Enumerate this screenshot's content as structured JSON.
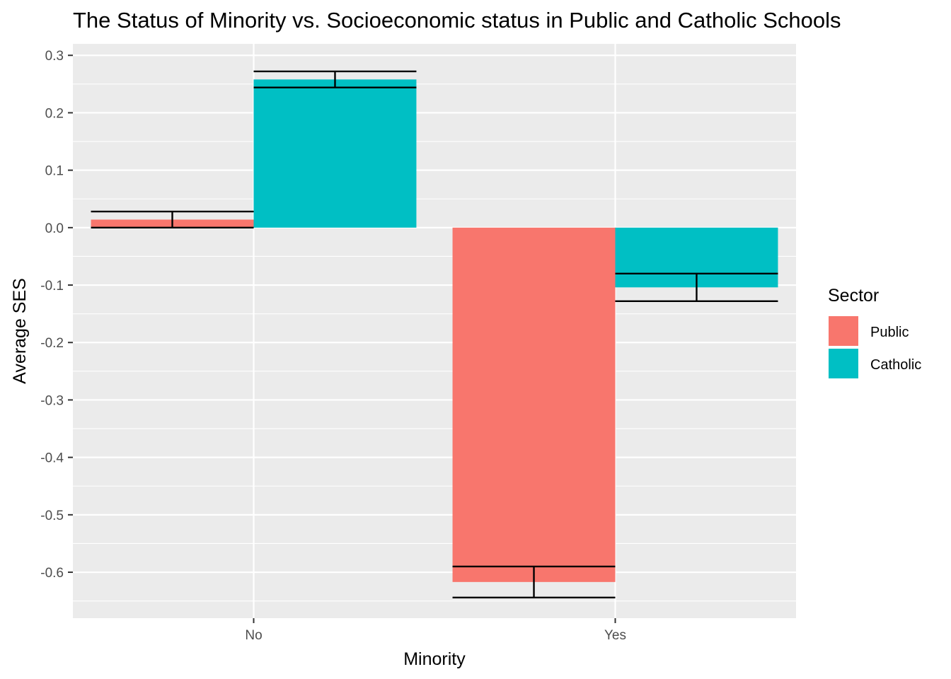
{
  "chart_data": {
    "type": "bar",
    "title": "The Status of Minority vs. Socioeconomic status in Public and Catholic Schools",
    "xlabel": "Minority",
    "ylabel": "Average SES",
    "categories": [
      "No",
      "Yes"
    ],
    "series": [
      {
        "name": "Public",
        "color": "#F8766D",
        "values": [
          0.014,
          -0.617
        ],
        "error_low": [
          0.0,
          -0.644
        ],
        "error_high": [
          0.028,
          -0.59
        ]
      },
      {
        "name": "Catholic",
        "color": "#00BFC4",
        "values": [
          0.258,
          -0.104
        ],
        "error_low": [
          0.244,
          -0.128
        ],
        "error_high": [
          0.272,
          -0.08
        ]
      }
    ],
    "ylim": [
      -0.68,
      0.32
    ],
    "y_ticks": [
      0.3,
      0.2,
      0.1,
      0.0,
      -0.1,
      -0.2,
      -0.3,
      -0.4,
      -0.5,
      -0.6
    ],
    "y_tick_labels": [
      "0.3",
      "0.2",
      "0.1",
      "0.0",
      "-0.1",
      "-0.2",
      "-0.3",
      "-0.4",
      "-0.5",
      "-0.6"
    ],
    "legend": {
      "title": "Sector",
      "position": "right"
    },
    "grid": true
  }
}
